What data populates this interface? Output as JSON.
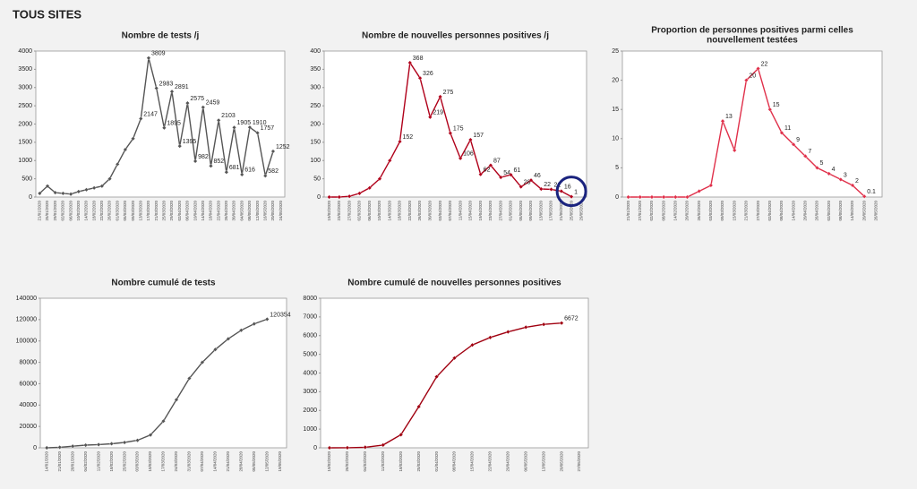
{
  "title": "TOUS SITES",
  "chart_data": [
    {
      "type": "line",
      "title": "Nombre de tests /j",
      "color": "#555555",
      "categories": [
        "21/01/2020",
        "25/01/2020",
        "29/01/2020",
        "02/02/2020",
        "06/02/2020",
        "10/02/2020",
        "14/02/2020",
        "18/02/2020",
        "22/02/2020",
        "26/02/2020",
        "01/03/2020",
        "05/03/2020",
        "09/03/2020",
        "13/03/2020",
        "17/03/2020",
        "21/03/2020",
        "25/03/2020",
        "29/03/2020",
        "02/04/2020",
        "06/04/2020",
        "10/04/2020",
        "14/04/2020",
        "18/04/2020",
        "22/04/2020",
        "26/04/2020",
        "30/04/2020",
        "04/05/2020",
        "08/05/2020",
        "12/05/2020",
        "16/05/2020",
        "20/05/2020",
        "24/05/2020"
      ],
      "values": [
        100,
        300,
        120,
        100,
        80,
        150,
        200,
        250,
        300,
        500,
        900,
        1300,
        1600,
        2147,
        3809,
        2983,
        1895,
        2891,
        1395,
        2575,
        982,
        2459,
        852,
        2103,
        681,
        1905,
        616,
        1910,
        1757,
        582,
        1252,
        null
      ],
      "value_labels": [
        null,
        null,
        null,
        null,
        null,
        null,
        null,
        null,
        null,
        null,
        null,
        null,
        null,
        "2147",
        "3809",
        "2983",
        "1895",
        "2891",
        "1395",
        "2575",
        "982",
        "2459",
        "852",
        "2103",
        "681",
        "1905",
        "616",
        "1910",
        "1757",
        "582",
        "1252",
        null
      ],
      "ylim": [
        0,
        4000
      ],
      "yticks": [
        0,
        500,
        1000,
        1500,
        2000,
        2500,
        3000,
        3500,
        4000
      ],
      "grid": false
    },
    {
      "type": "line",
      "title": "Nombre de nouvelles personnes positives /j",
      "color": "#b0001a",
      "categories": [
        "19/02/2020",
        "23/02/2020",
        "27/02/2020",
        "02/03/2020",
        "06/03/2020",
        "10/03/2020",
        "14/03/2020",
        "18/03/2020",
        "22/03/2020",
        "26/03/2020",
        "30/03/2020",
        "03/04/2020",
        "07/04/2020",
        "11/04/2020",
        "15/04/2020",
        "19/04/2020",
        "23/04/2020",
        "27/04/2020",
        "01/05/2020",
        "05/05/2020",
        "09/05/2020",
        "13/05/2020",
        "17/05/2020",
        "21/05/2020",
        "25/05/2020",
        "29/05/2020"
      ],
      "values": [
        0,
        0,
        2,
        10,
        25,
        50,
        100,
        152,
        368,
        326,
        219,
        275,
        175,
        106,
        157,
        62,
        87,
        54,
        61,
        28,
        46,
        22,
        21,
        16,
        1,
        null
      ],
      "value_labels": [
        null,
        null,
        null,
        null,
        null,
        null,
        null,
        "152",
        "368",
        "326",
        "219",
        "275",
        "175",
        "106",
        "157",
        "62",
        "87",
        "54",
        "61",
        "28",
        "46",
        "22",
        "21",
        "16",
        "1",
        null
      ],
      "ylim": [
        0,
        400
      ],
      "yticks": [
        0,
        50,
        100,
        150,
        200,
        250,
        300,
        350,
        400
      ],
      "grid": false
    },
    {
      "type": "line",
      "title": [
        "Proportion de personnes positives parmi celles",
        "nouvellement testées"
      ],
      "color": "#e0304a",
      "categories": [
        "21/01/2020",
        "27/01/2020",
        "02/02/2020",
        "08/02/2020",
        "14/02/2020",
        "20/02/2020",
        "26/02/2020",
        "03/03/2020",
        "09/03/2020",
        "15/03/2020",
        "21/03/2020",
        "27/03/2020",
        "02/04/2020",
        "08/04/2020",
        "14/04/2020",
        "20/04/2020",
        "26/04/2020",
        "02/05/2020",
        "08/05/2020",
        "14/05/2020",
        "20/05/2020",
        "26/05/2020"
      ],
      "values": [
        0,
        0,
        0,
        0,
        0,
        0,
        1,
        2,
        13,
        8,
        20,
        22,
        15,
        11,
        9,
        7,
        5,
        4,
        3,
        2,
        0.1,
        null
      ],
      "value_labels": [
        null,
        null,
        null,
        null,
        null,
        null,
        null,
        null,
        "13",
        null,
        "20",
        "22",
        "15",
        "11",
        "9",
        "7",
        "5",
        "4",
        "3",
        "2",
        "0.1",
        null
      ],
      "ylim": [
        0,
        25
      ],
      "yticks": [
        0,
        5,
        10,
        15,
        20,
        25
      ],
      "grid": false
    },
    {
      "type": "line",
      "title": "Nombre cumulé de tests",
      "color": "#555555",
      "categories": [
        "14/01/2020",
        "21/01/2020",
        "28/01/2020",
        "04/02/2020",
        "11/02/2020",
        "18/02/2020",
        "25/02/2020",
        "03/03/2020",
        "10/03/2020",
        "17/03/2020",
        "24/03/2020",
        "31/03/2020",
        "07/04/2020",
        "14/04/2020",
        "21/04/2020",
        "28/04/2020",
        "05/05/2020",
        "12/05/2020",
        "19/05/2020"
      ],
      "values": [
        0,
        500,
        1500,
        2500,
        3000,
        3800,
        5000,
        7000,
        12000,
        25000,
        45000,
        65000,
        80000,
        92000,
        102000,
        110000,
        116000,
        120354,
        null
      ],
      "value_labels": [
        null,
        null,
        null,
        null,
        null,
        null,
        null,
        null,
        null,
        null,
        null,
        null,
        null,
        null,
        null,
        null,
        null,
        "120354",
        null
      ],
      "ylim": [
        0,
        140000
      ],
      "yticks": [
        0,
        20000,
        40000,
        60000,
        80000,
        100000,
        120000,
        140000
      ],
      "grid": false
    },
    {
      "type": "line",
      "title": "Nombre cumulé de nouvelles personnes positives",
      "color": "#a00010",
      "categories": [
        "19/02/2020",
        "26/02/2020",
        "04/03/2020",
        "11/03/2020",
        "18/03/2020",
        "25/03/2020",
        "01/04/2020",
        "08/04/2020",
        "15/04/2020",
        "22/04/2020",
        "29/04/2020",
        "06/05/2020",
        "13/05/2020",
        "20/05/2020",
        "27/05/2020"
      ],
      "values": [
        0,
        5,
        30,
        150,
        700,
        2200,
        3800,
        4800,
        5500,
        5900,
        6200,
        6450,
        6600,
        6672,
        null
      ],
      "value_labels": [
        null,
        null,
        null,
        null,
        null,
        null,
        null,
        null,
        null,
        null,
        null,
        null,
        null,
        "6672",
        null
      ],
      "ylim": [
        0,
        8000
      ],
      "yticks": [
        0,
        1000,
        2000,
        3000,
        4000,
        5000,
        6000,
        7000,
        8000
      ],
      "grid": false
    }
  ]
}
